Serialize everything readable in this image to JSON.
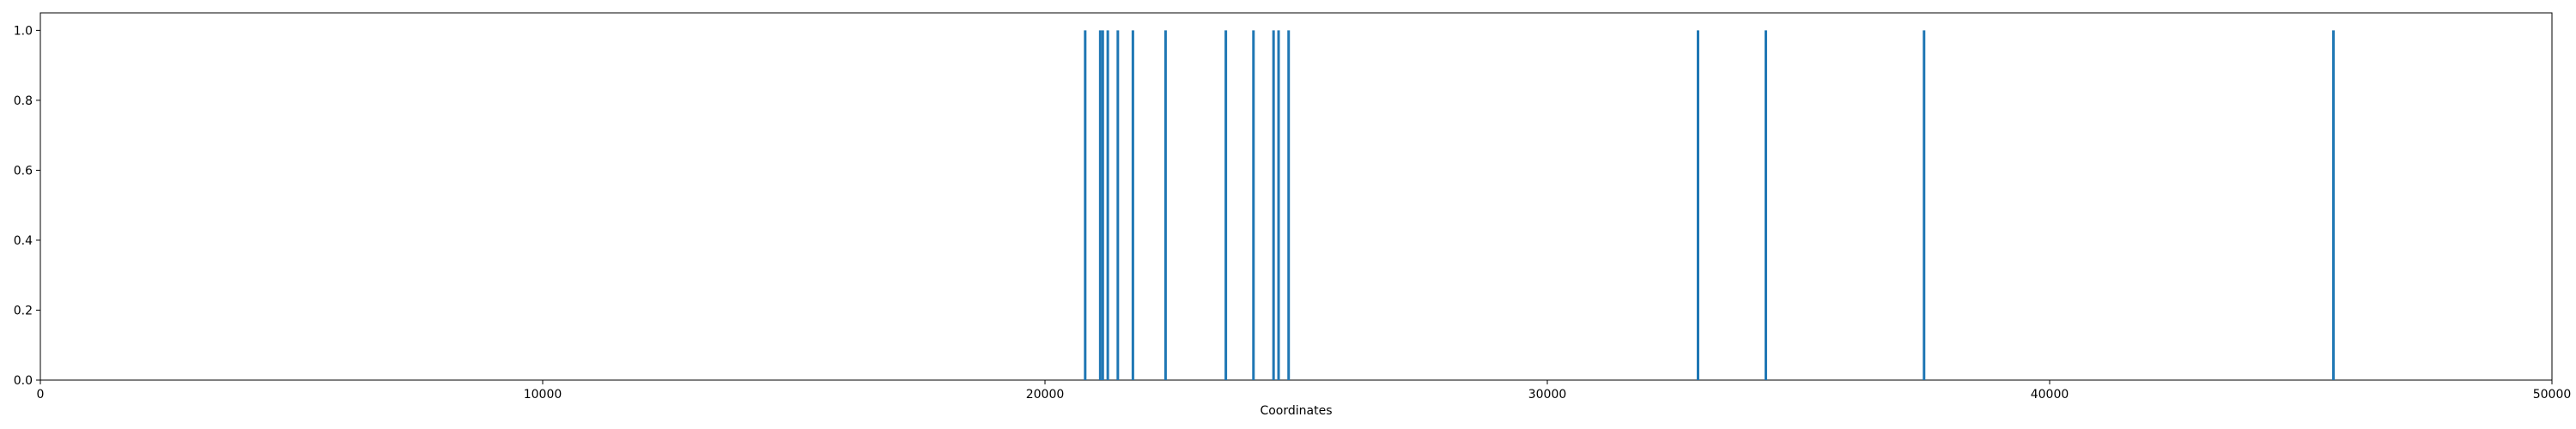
{
  "chart_data": {
    "type": "bar",
    "xlabel": "Coordinates",
    "ylabel": "",
    "xlim": [
      0,
      50000
    ],
    "ylim": [
      0,
      1.05
    ],
    "x_ticks": [
      0,
      10000,
      20000,
      30000,
      40000,
      50000
    ],
    "x_tick_labels": [
      "0",
      "10000",
      "20000",
      "30000",
      "40000",
      "50000"
    ],
    "y_ticks": [
      0,
      0.2,
      0.4,
      0.6,
      0.8,
      1.0
    ],
    "y_tick_labels": [
      "0.0",
      "0.2",
      "0.4",
      "0.6",
      "0.8",
      "1.0"
    ],
    "grid": false,
    "bar_color": "#1f77b4",
    "series": [
      {
        "x": [
          20800,
          21100,
          21150,
          21250,
          21450,
          21750,
          22400,
          23600,
          24150,
          24550,
          24650,
          24850,
          33000,
          34350,
          37500,
          45650
        ],
        "values": [
          1,
          1,
          1,
          1,
          1,
          1,
          1,
          1,
          1,
          1,
          1,
          1,
          1,
          1,
          1,
          1
        ]
      }
    ]
  }
}
